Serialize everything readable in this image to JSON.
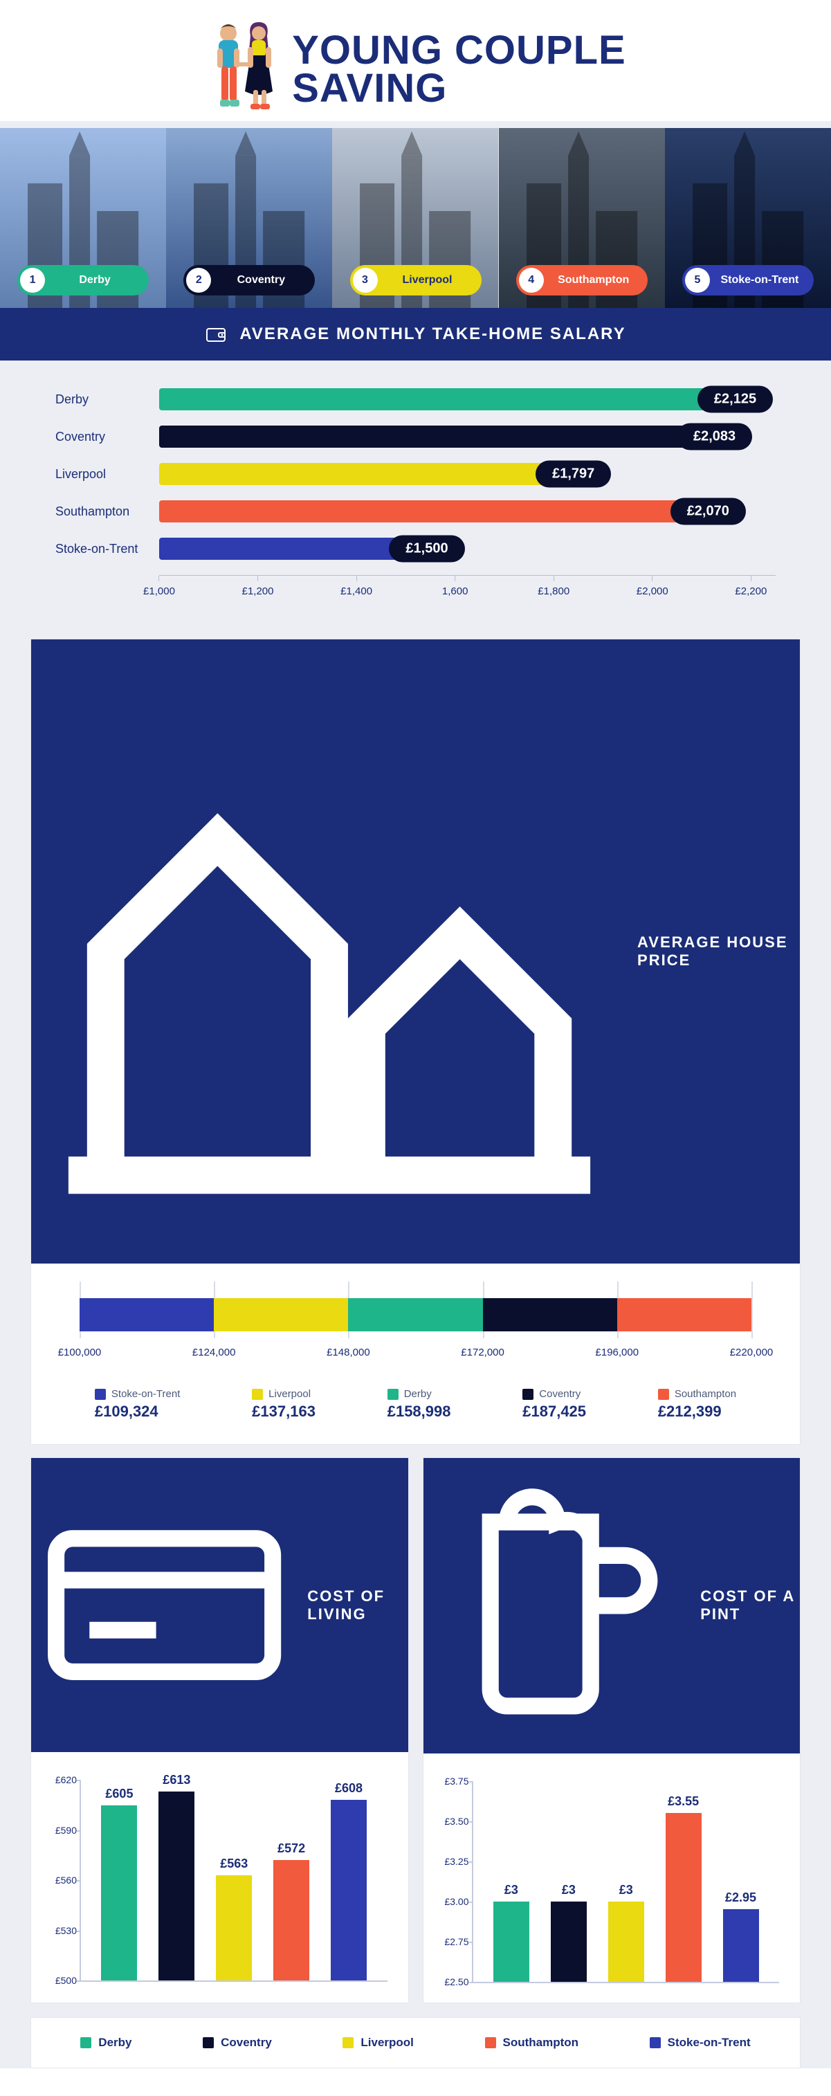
{
  "title_line1": "YOUNG COUPLE",
  "title_line2": "SAVING",
  "title_color": "#1b2d78",
  "cities": [
    {
      "name": "Derby",
      "color": "#1fb58a",
      "text": "#ffffff",
      "rank": 1
    },
    {
      "name": "Coventry",
      "color": "#0a0f2e",
      "text": "#ffffff",
      "rank": 2
    },
    {
      "name": "Liverpool",
      "color": "#e9da11",
      "text": "#1b2d78",
      "rank": 3
    },
    {
      "name": "Southampton",
      "color": "#f15a3c",
      "text": "#ffffff",
      "rank": 4
    },
    {
      "name": "Stoke-on-Trent",
      "color": "#2e3cb0",
      "text": "#ffffff",
      "rank": 5
    }
  ],
  "photo_bg": [
    [
      "#9fbbe6",
      "#5f7faf"
    ],
    [
      "#8aa8d2",
      "#36548a"
    ],
    [
      "#bcc6d4",
      "#6f7f96"
    ],
    [
      "#5c6878",
      "#2a3542"
    ],
    [
      "#2a3f6a",
      "#0b1632"
    ]
  ],
  "salary": {
    "heading": "AVERAGE MONTHLY TAKE-HOME SALARY",
    "x_min": 1000,
    "x_max": 2250,
    "ticks": [
      1000,
      1200,
      1400,
      1600,
      1800,
      2000,
      2200
    ],
    "tick_labels": [
      "£1,000",
      "£1,200",
      "£1,400",
      "1,600",
      "£1,800",
      "£2,000",
      "£2,200"
    ],
    "rows": [
      {
        "city": "Derby",
        "value": 2125,
        "label": "£2,125",
        "color": "#1fb58a"
      },
      {
        "city": "Coventry",
        "value": 2083,
        "label": "£2,083",
        "color": "#0a0f2e"
      },
      {
        "city": "Liverpool",
        "value": 1797,
        "label": "£1,797",
        "color": "#e9da11"
      },
      {
        "city": "Southampton",
        "value": 2070,
        "label": "£2,070",
        "color": "#f15a3c"
      },
      {
        "city": "Stoke-on-Trent",
        "value": 1500,
        "label": "£1,500",
        "color": "#2e3cb0"
      }
    ]
  },
  "house": {
    "heading": "AVERAGE HOUSE PRICE",
    "axis_min": 100000,
    "axis_max": 220000,
    "ticks": [
      100000,
      124000,
      148000,
      172000,
      196000,
      220000
    ],
    "tick_labels": [
      "£100,000",
      "£124,000",
      "£148,000",
      "£172,000",
      "£196,000",
      "£220,000"
    ],
    "segments": [
      {
        "city": "Stoke-on-Trent",
        "value": "£109,324",
        "start": 100000,
        "end": 124000,
        "color": "#2e3cb0"
      },
      {
        "city": "Liverpool",
        "value": "£137,163",
        "start": 124000,
        "end": 148000,
        "color": "#e9da11"
      },
      {
        "city": "Derby",
        "value": "£158,998",
        "start": 148000,
        "end": 172000,
        "color": "#1fb58a"
      },
      {
        "city": "Coventry",
        "value": "£187,425",
        "start": 172000,
        "end": 196000,
        "color": "#0a0f2e"
      },
      {
        "city": "Southampton",
        "value": "£212,399",
        "start": 196000,
        "end": 220000,
        "color": "#f15a3c"
      }
    ]
  },
  "cost_living": {
    "heading": "COST OF LIVING",
    "y_min": 500,
    "y_max": 620,
    "ticks": [
      500,
      530,
      560,
      590,
      620
    ],
    "tick_labels": [
      "£500",
      "£530",
      "£560",
      "£590",
      "£620"
    ],
    "bars": [
      {
        "value": 605,
        "label": "£605",
        "color": "#1fb58a"
      },
      {
        "value": 613,
        "label": "£613",
        "color": "#0a0f2e"
      },
      {
        "value": 563,
        "label": "£563",
        "color": "#e9da11"
      },
      {
        "value": 572,
        "label": "£572",
        "color": "#f15a3c"
      },
      {
        "value": 608,
        "label": "£608",
        "color": "#2e3cb0"
      }
    ]
  },
  "cost_pint": {
    "heading": "COST OF A PINT",
    "y_min": 2.5,
    "y_max": 3.75,
    "ticks": [
      2.5,
      2.75,
      3.0,
      3.25,
      3.5,
      3.75
    ],
    "tick_labels": [
      "£2.50",
      "£2.75",
      "£3.00",
      "£3.25",
      "£3.50",
      "£3.75"
    ],
    "bars": [
      {
        "value": 3.0,
        "label": "£3",
        "color": "#1fb58a"
      },
      {
        "value": 3.0,
        "label": "£3",
        "color": "#0a0f2e"
      },
      {
        "value": 3.0,
        "label": "£3",
        "color": "#e9da11"
      },
      {
        "value": 3.55,
        "label": "£3.55",
        "color": "#f15a3c"
      },
      {
        "value": 2.95,
        "label": "£2.95",
        "color": "#2e3cb0"
      }
    ]
  },
  "legend": [
    {
      "name": "Derby",
      "color": "#1fb58a"
    },
    {
      "name": "Coventry",
      "color": "#0a0f2e"
    },
    {
      "name": "Liverpool",
      "color": "#e9da11"
    },
    {
      "name": "Southampton",
      "color": "#f15a3c"
    },
    {
      "name": "Stoke-on-Trent",
      "color": "#2e3cb0"
    }
  ]
}
